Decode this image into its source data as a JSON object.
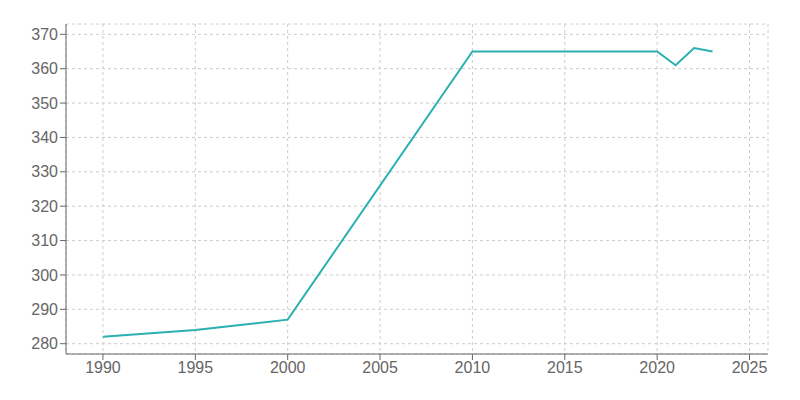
{
  "chart_data": {
    "type": "line",
    "x": [
      1990,
      1995,
      2000,
      2010,
      2015,
      2020,
      2021,
      2022,
      2023
    ],
    "values": [
      282,
      284,
      287,
      365,
      365,
      365,
      361,
      366,
      365
    ],
    "color": "#2ab0b0",
    "xlim": [
      1988,
      2026
    ],
    "ylim": [
      277,
      373
    ],
    "xticks": [
      1990,
      1995,
      2000,
      2005,
      2010,
      2015,
      2020,
      2025
    ],
    "yticks": [
      280,
      290,
      300,
      310,
      320,
      330,
      340,
      350,
      360,
      370
    ],
    "grid": true
  }
}
